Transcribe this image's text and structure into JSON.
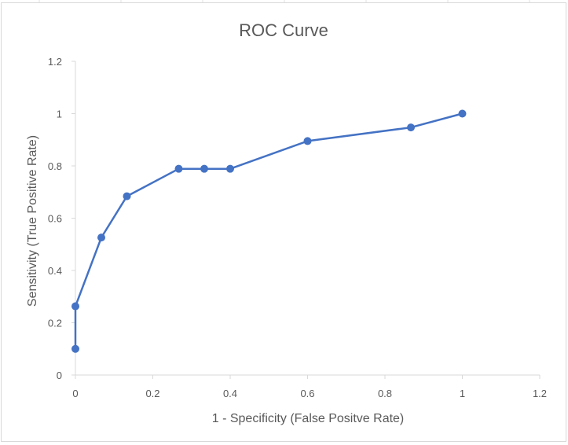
{
  "chart_data": {
    "type": "line",
    "title": "ROC Curve",
    "xlabel": "1 - Specificity (False Positve Rate)",
    "ylabel": "Sensitivity (True Positive Rate)",
    "xlim": [
      0,
      1.2
    ],
    "ylim": [
      0,
      1.2
    ],
    "x_ticks": [
      0,
      0.2,
      0.4,
      0.6,
      0.8,
      1,
      1.2
    ],
    "y_ticks": [
      0,
      0.2,
      0.4,
      0.6,
      0.8,
      1,
      1.2
    ],
    "grid": false,
    "markers": true,
    "series": [
      {
        "x": [
          0,
          0,
          0.067,
          0.133,
          0.267,
          0.333,
          0.4,
          0.6,
          0.867,
          1
        ],
        "y": [
          0.1,
          0.263,
          0.526,
          0.684,
          0.789,
          0.789,
          0.789,
          0.895,
          0.947,
          1
        ],
        "color": "#4472c4"
      }
    ]
  }
}
